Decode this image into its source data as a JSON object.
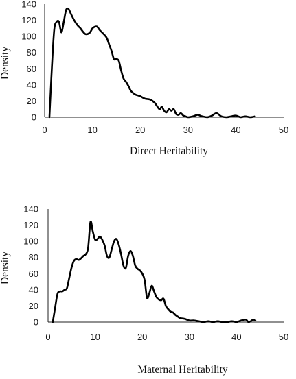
{
  "chart_data": [
    {
      "type": "line",
      "xlabel": "Direct Heritability",
      "ylabel": "Density",
      "xlim": [
        0,
        50
      ],
      "ylim": [
        0,
        140
      ],
      "x_ticks": [
        "0",
        "10",
        "20",
        "30",
        "40",
        "50"
      ],
      "y_ticks": [
        "0",
        "20",
        "40",
        "60",
        "80",
        "100",
        "120",
        "140"
      ],
      "grid": false,
      "series": [
        {
          "x": [
            1,
            1.5,
            2,
            2.5,
            3,
            3.5,
            4,
            4.5,
            5,
            5.5,
            6,
            6.5,
            7,
            7.5,
            8,
            8.5,
            9,
            9.5,
            10,
            10.5,
            11,
            11.5,
            12,
            12.5,
            13,
            13.5,
            14,
            14.5,
            15,
            15.5,
            16,
            16.5,
            17,
            17.5,
            18,
            18.5,
            19,
            19.5,
            20,
            21,
            22,
            23,
            24,
            24.5,
            25,
            25.5,
            26,
            26.5,
            27,
            27.5,
            28,
            28.5,
            29,
            29.5,
            30,
            31,
            32,
            32.5,
            33,
            34,
            35,
            35.5,
            36,
            36.5,
            37,
            38,
            39,
            40,
            41,
            42,
            43,
            44
          ],
          "y": [
            0,
            60,
            108,
            118,
            118,
            105,
            118,
            133,
            134,
            128,
            122,
            117,
            113,
            110,
            106,
            103,
            103,
            105,
            110,
            112,
            112,
            108,
            105,
            102,
            98,
            90,
            82,
            72,
            72,
            70,
            58,
            48,
            44,
            39,
            33,
            30,
            28,
            27,
            26,
            23,
            22,
            18,
            10,
            13,
            8,
            6,
            10,
            8,
            10,
            4,
            3,
            5,
            2,
            1,
            0,
            1,
            3,
            2,
            1,
            0,
            2,
            4,
            5,
            3,
            1,
            0,
            1,
            2,
            0,
            1,
            0,
            1
          ]
        }
      ]
    },
    {
      "type": "line",
      "xlabel": "Maternal Heritability",
      "ylabel": "Density",
      "xlim": [
        0,
        50
      ],
      "ylim": [
        0,
        140
      ],
      "x_ticks": [
        "0",
        "10",
        "20",
        "30",
        "40",
        "50"
      ],
      "y_ticks": [
        "0",
        "20",
        "40",
        "60",
        "80",
        "100",
        "120",
        "140"
      ],
      "grid": false,
      "series": [
        {
          "x": [
            1,
            1.5,
            2,
            2.5,
            3,
            3.5,
            4,
            4.5,
            5,
            5.5,
            6,
            6.5,
            7,
            7.5,
            8,
            8.5,
            9,
            9.5,
            10,
            10.5,
            11,
            11.5,
            12,
            12.5,
            13,
            13.5,
            14,
            14.5,
            15,
            15.5,
            16,
            16.5,
            17,
            17.5,
            18,
            18.5,
            19,
            19.5,
            20,
            20.5,
            21,
            21.5,
            22,
            22.5,
            23,
            23.5,
            24,
            24.5,
            25,
            25.5,
            26,
            26.5,
            27,
            27.5,
            28,
            29,
            30,
            31,
            32,
            33,
            34,
            35,
            36,
            37,
            38,
            39,
            40,
            41,
            42,
            42.5,
            43,
            43.5,
            44
          ],
          "y": [
            0,
            18,
            35,
            38,
            38,
            40,
            42,
            55,
            68,
            76,
            78,
            77,
            79,
            82,
            84,
            92,
            124,
            112,
            102,
            103,
            106,
            102,
            95,
            82,
            80,
            90,
            100,
            103,
            96,
            84,
            70,
            67,
            82,
            88,
            82,
            70,
            66,
            64,
            60,
            52,
            30,
            36,
            45,
            38,
            31,
            28,
            27,
            29,
            20,
            16,
            13,
            12,
            9,
            7,
            5,
            4,
            2,
            2,
            1,
            0,
            1,
            0,
            1,
            0,
            0,
            1,
            0,
            2,
            3,
            0,
            1,
            3,
            2
          ]
        }
      ]
    }
  ]
}
